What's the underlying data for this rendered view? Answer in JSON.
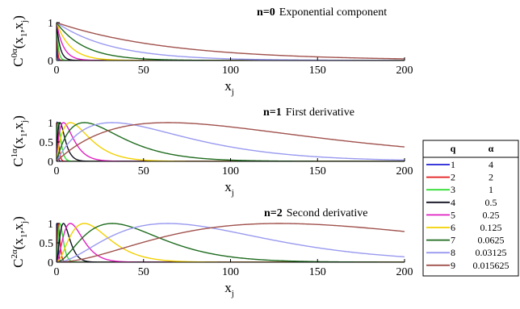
{
  "chart_data": {
    "type": "line",
    "x_range": [
      0,
      200
    ],
    "y_range": [
      0,
      1
    ],
    "grid": false,
    "panels": [
      {
        "n": 0,
        "title_bold": "n=0",
        "title_rest": "Exponential component",
        "ylabel_main": "C",
        "ylabel_sup": "0α",
        "ylabel_args": "(x",
        "ylabel_sub1": "1",
        "ylabel_mid": ",x",
        "ylabel_sub2": "j",
        "ylabel_end": ")",
        "xlabel_main": "x",
        "xlabel_sub": "j",
        "xticks": [
          0,
          50,
          100,
          150,
          200
        ],
        "yticks": [
          0,
          1
        ],
        "xtick_labels": [
          "0",
          "50",
          "100",
          "150",
          "200"
        ],
        "ytick_labels": [
          "0",
          "1"
        ]
      },
      {
        "n": 1,
        "title_bold": "n=1",
        "title_rest": "First derivative",
        "ylabel_main": "C",
        "ylabel_sup": "1α",
        "ylabel_args": "(x",
        "ylabel_sub1": "1",
        "ylabel_mid": ",x",
        "ylabel_sub2": "j",
        "ylabel_end": ")",
        "xlabel_main": "x",
        "xlabel_sub": "j",
        "xticks": [
          0,
          50,
          100,
          150,
          200
        ],
        "yticks": [
          0,
          0.5,
          1
        ],
        "xtick_labels": [
          "0",
          "50",
          "100",
          "150",
          "200"
        ],
        "ytick_labels": [
          "0",
          "0.5",
          "1"
        ]
      },
      {
        "n": 2,
        "title_bold": "n=2",
        "title_rest": "Second derivative",
        "ylabel_main": "C",
        "ylabel_sup": "2α",
        "ylabel_args": "(x",
        "ylabel_sub1": "1",
        "ylabel_mid": ",x",
        "ylabel_sub2": "j",
        "ylabel_end": ")",
        "xlabel_main": "x",
        "xlabel_sub": "j",
        "xticks": [
          0,
          50,
          100,
          150,
          200
        ],
        "yticks": [
          0,
          0.5,
          1
        ],
        "xtick_labels": [
          "0",
          "50",
          "100",
          "150",
          "200"
        ],
        "ytick_labels": [
          "0",
          "0.5",
          "1"
        ]
      }
    ],
    "series": [
      {
        "q": "1",
        "alpha": "4",
        "alpha_value": 4,
        "color": "#1f1fd6"
      },
      {
        "q": "2",
        "alpha": "2",
        "alpha_value": 2,
        "color": "#e31a1c"
      },
      {
        "q": "3",
        "alpha": "1",
        "alpha_value": 1,
        "color": "#33dd33"
      },
      {
        "q": "4",
        "alpha": "0.5",
        "alpha_value": 0.5,
        "color": "#111122"
      },
      {
        "q": "5",
        "alpha": "0.25",
        "alpha_value": 0.25,
        "color": "#e020c0"
      },
      {
        "q": "6",
        "alpha": "0.125",
        "alpha_value": 0.125,
        "color": "#f2d000"
      },
      {
        "q": "7",
        "alpha": "0.0625",
        "alpha_value": 0.0625,
        "color": "#1e6b1e"
      },
      {
        "q": "8",
        "alpha": "0.03125",
        "alpha_value": 0.03125,
        "color": "#9999f0"
      },
      {
        "q": "9",
        "alpha": "0.015625",
        "alpha_value": 0.015625,
        "color": "#a0524d"
      }
    ],
    "legend": {
      "placement": "right",
      "header_q": "q",
      "header_alpha": "α"
    }
  }
}
